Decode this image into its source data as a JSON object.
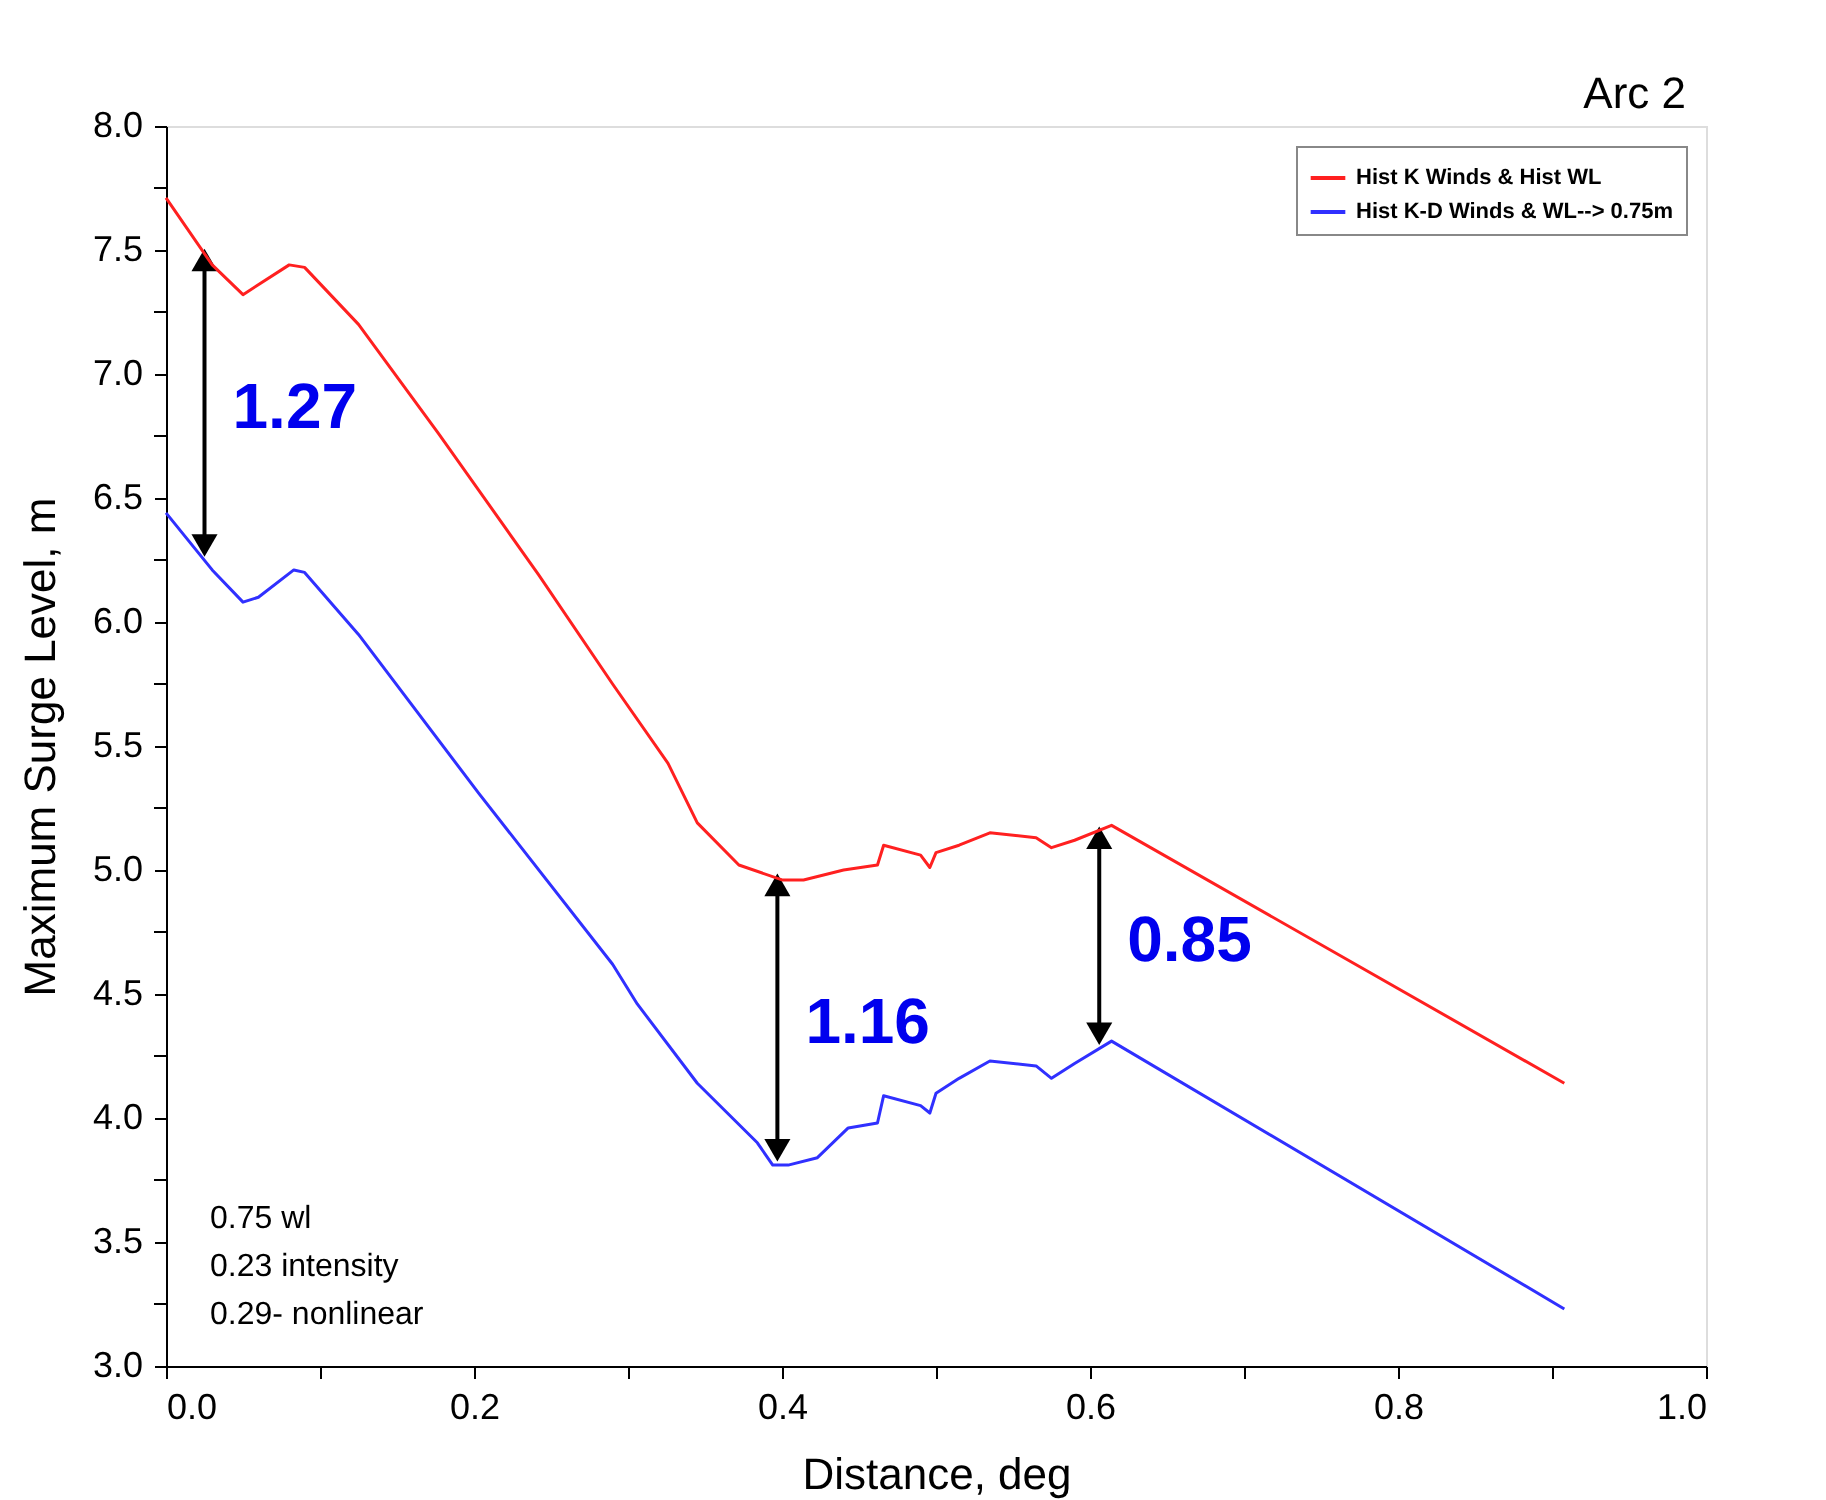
{
  "chart_data": {
    "type": "line",
    "title": "Arc 2",
    "xlabel": "Distance, deg",
    "ylabel": "Maximum Surge Level, m",
    "xlim": [
      0,
      1
    ],
    "ylim": [
      3,
      8
    ],
    "xticks": [
      {
        "value": 0,
        "label": "0.0"
      },
      {
        "value": 0.1,
        "label": null
      },
      {
        "value": 0.2,
        "label": "0.2"
      },
      {
        "value": 0.3,
        "label": null
      },
      {
        "value": 0.4,
        "label": "0.4"
      },
      {
        "value": 0.5,
        "label": null
      },
      {
        "value": 0.6,
        "label": "0.6"
      },
      {
        "value": 0.7,
        "label": null
      },
      {
        "value": 0.8,
        "label": "0.8"
      },
      {
        "value": 0.9,
        "label": null
      },
      {
        "value": 1,
        "label": "1.0"
      }
    ],
    "yticks": [
      {
        "value": 3,
        "label": "3.0"
      },
      {
        "value": 3.25,
        "label": null
      },
      3.5,
      {
        "value": 3.75,
        "label": null
      },
      {
        "value": 4,
        "label": "4.0"
      },
      {
        "value": 4.25,
        "label": null
      },
      4.5,
      {
        "value": 4.75,
        "label": null
      },
      {
        "value": 5,
        "label": "5.0"
      },
      {
        "value": 5.25,
        "label": null
      },
      5.5,
      {
        "value": 5.75,
        "label": null
      },
      {
        "value": 6,
        "label": "6.0"
      },
      {
        "value": 6.25,
        "label": null
      },
      6.5,
      {
        "value": 6.75,
        "label": null
      },
      {
        "value": 7,
        "label": "7.0"
      },
      {
        "value": 7.25,
        "label": null
      },
      7.5,
      {
        "value": 7.75,
        "label": null
      },
      {
        "value": 8,
        "label": "8.0"
      }
    ],
    "grid": false,
    "legend": "top right",
    "marker": "none",
    "line_style": "solid",
    "series": [
      {
        "name": "Hist K Winds & Hist WL",
        "color": "#ff2020",
        "x": [
          0,
          0.03,
          0.05,
          0.08,
          0.09,
          0.125,
          0.177,
          0.242,
          0.29,
          0.326,
          0.345,
          0.372,
          0.4,
          0.414,
          0.44,
          0.462,
          0.466,
          0.49,
          0.496,
          0.5,
          0.515,
          0.535,
          0.565,
          0.575,
          0.59,
          0.614,
          0.908
        ],
        "values": [
          7.71,
          7.44,
          7.32,
          7.44,
          7.43,
          7.2,
          6.76,
          6.19,
          5.75,
          5.43,
          5.19,
          5.02,
          4.96,
          4.96,
          5.0,
          5.02,
          5.1,
          5.06,
          5.01,
          5.07,
          5.1,
          5.15,
          5.13,
          5.09,
          5.12,
          5.18,
          4.14
        ]
      },
      {
        "name": "Hist K-D Winds & WL--> 0.75m",
        "color": "#3030ff",
        "x": [
          0,
          0.03,
          0.05,
          0.06,
          0.083,
          0.09,
          0.125,
          0.203,
          0.29,
          0.306,
          0.345,
          0.384,
          0.394,
          0.404,
          0.423,
          0.443,
          0.462,
          0.466,
          0.49,
          0.496,
          0.5,
          0.515,
          0.535,
          0.565,
          0.575,
          0.59,
          0.614,
          0.908
        ],
        "values": [
          6.44,
          6.21,
          6.08,
          6.1,
          6.21,
          6.2,
          5.95,
          5.31,
          4.62,
          4.46,
          4.14,
          3.9,
          3.81,
          3.81,
          3.84,
          3.96,
          3.98,
          4.09,
          4.05,
          4.02,
          4.1,
          4.16,
          4.23,
          4.21,
          4.16,
          4.22,
          4.31,
          3.23
        ]
      }
    ],
    "annotations": [
      {
        "text": "1.27",
        "x": 0.025,
        "y": 7.48
      },
      {
        "text": "1.16",
        "x": 0.397,
        "y": 4.96
      },
      {
        "text": "0.85",
        "x": 0.606,
        "y": 5.15
      },
      "0.75 wl",
      "0.23 intensity",
      "0.29- nonlinear"
    ]
  }
}
